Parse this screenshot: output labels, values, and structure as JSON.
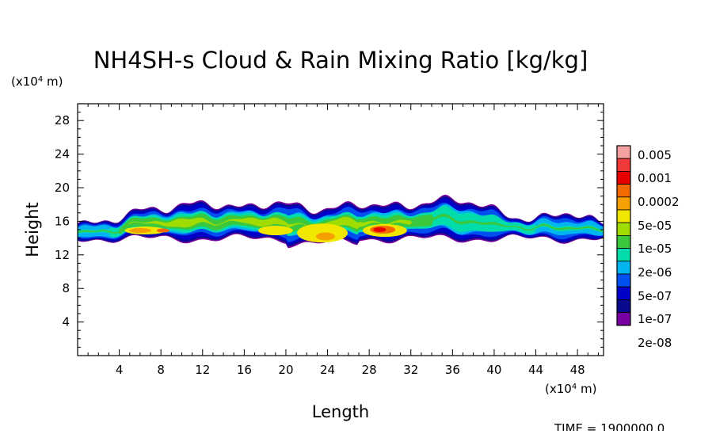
{
  "chart_data": {
    "type": "heatmap",
    "title": "NH4SH-s Cloud & Rain Mixing Ratio [kg/kg]",
    "xlabel": "Length",
    "ylabel": "Height",
    "x_unit": "(x10^4 m)",
    "y_unit": "(x10^4 m)",
    "xlim": [
      0,
      50.5
    ],
    "ylim": [
      0,
      30
    ],
    "x_ticks": [
      4,
      8,
      12,
      16,
      20,
      24,
      28,
      32,
      36,
      40,
      44,
      48
    ],
    "y_ticks": [
      4,
      8,
      12,
      16,
      20,
      24,
      28
    ],
    "time_label": "TIME = 1900000.0",
    "legend": {
      "placement": "right",
      "levels": [
        "0.005",
        "0.001",
        "0.0002",
        "5e-05",
        "1e-05",
        "2e-06",
        "5e-07",
        "1e-07",
        "2e-08"
      ],
      "colors": [
        "#f5a0a0",
        "#f03a3a",
        "#e60000",
        "#f26a00",
        "#f5a000",
        "#f0e600",
        "#a0dc00",
        "#3cc83c",
        "#00dcaa",
        "#00b4f0",
        "#0050f0",
        "#0000c8",
        "#0a0a8c",
        "#7800a0"
      ]
    },
    "cloud_layer": {
      "x_range": [
        0,
        50.5
      ],
      "base_height_range": [
        13,
        14.5
      ],
      "top_height_range": [
        15,
        19.5
      ],
      "max_level": "0.0002",
      "core_centers_x": [
        6.5,
        19,
        23.5,
        29.5
      ]
    }
  }
}
